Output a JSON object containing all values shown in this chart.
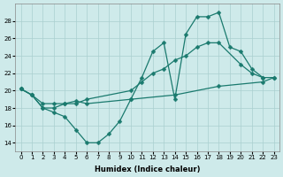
{
  "xlabel": "Humidex (Indice chaleur)",
  "bg_color": "#ceeaea",
  "grid_color": "#aacfcf",
  "line_color": "#1a7a6e",
  "line1_x": [
    0,
    1,
    2,
    3,
    4,
    5,
    6,
    7,
    8,
    9,
    10,
    11,
    12,
    13,
    14,
    15,
    16,
    17,
    18,
    19,
    20,
    21,
    22
  ],
  "line1_y": [
    20.2,
    19.5,
    18.0,
    17.5,
    17.0,
    15.5,
    14.0,
    14.0,
    15.0,
    16.5,
    19.0,
    21.5,
    24.5,
    25.5,
    19.0,
    26.5,
    28.5,
    28.5,
    29.0,
    25.0,
    24.5,
    22.5,
    21.5
  ],
  "line2_x": [
    0,
    1,
    2,
    3,
    4,
    5,
    6,
    10,
    11,
    12,
    13,
    14,
    15,
    16,
    17,
    18,
    20,
    21,
    22,
    23
  ],
  "line2_y": [
    20.2,
    19.5,
    18.0,
    18.0,
    18.5,
    18.5,
    19.0,
    20.0,
    21.0,
    22.0,
    22.5,
    23.5,
    24.0,
    25.0,
    25.5,
    25.5,
    23.0,
    22.0,
    21.5,
    21.5
  ],
  "line3_x": [
    0,
    1,
    2,
    3,
    4,
    5,
    6,
    10,
    14,
    18,
    22,
    23
  ],
  "line3_y": [
    20.2,
    19.5,
    18.5,
    18.5,
    18.5,
    18.8,
    18.5,
    19.0,
    19.5,
    20.5,
    21.0,
    21.5
  ],
  "ylim": [
    13,
    30
  ],
  "xlim": [
    -0.5,
    23.5
  ],
  "yticks": [
    14,
    16,
    18,
    20,
    22,
    24,
    26,
    28
  ],
  "xticks": [
    0,
    1,
    2,
    3,
    4,
    5,
    6,
    7,
    8,
    9,
    10,
    11,
    12,
    13,
    14,
    15,
    16,
    17,
    18,
    19,
    20,
    21,
    22,
    23
  ]
}
